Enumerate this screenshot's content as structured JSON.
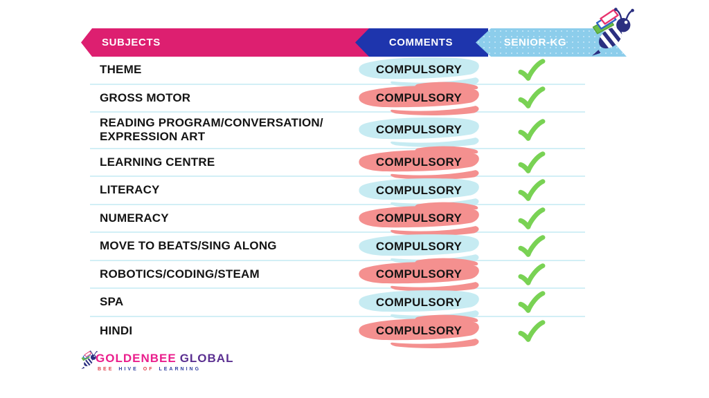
{
  "header": {
    "columns": [
      {
        "id": "subjects",
        "label": "SUBJECTS"
      },
      {
        "id": "comments",
        "label": "COMMENTS"
      },
      {
        "id": "senior_kg",
        "label": "SENIOR-KG"
      }
    ]
  },
  "table": {
    "rows": [
      {
        "subject": "THEME",
        "comment": "COMPULSORY",
        "highlight": "blue",
        "checked": true
      },
      {
        "subject": "GROSS MOTOR",
        "comment": "COMPULSORY",
        "highlight": "pink",
        "checked": true
      },
      {
        "subject": "READING PROGRAM/CONVERSATION/\nEXPRESSION ART",
        "comment": "COMPULSORY",
        "highlight": "blue",
        "checked": true
      },
      {
        "subject": "LEARNING CENTRE",
        "comment": "COMPULSORY",
        "highlight": "pink",
        "checked": true
      },
      {
        "subject": "LITERACY",
        "comment": "COMPULSORY",
        "highlight": "blue",
        "checked": true
      },
      {
        "subject": "NUMERACY",
        "comment": "COMPULSORY",
        "highlight": "pink",
        "checked": true
      },
      {
        "subject": "MOVE TO BEATS/SING ALONG",
        "comment": "COMPULSORY",
        "highlight": "blue",
        "checked": true
      },
      {
        "subject": "ROBOTICS/CODING/STEAM",
        "comment": "COMPULSORY",
        "highlight": "pink",
        "checked": true
      },
      {
        "subject": "SPA",
        "comment": "COMPULSORY",
        "highlight": "blue",
        "checked": true
      },
      {
        "subject": "HINDI",
        "comment": "COMPULSORY",
        "highlight": "pink",
        "checked": true
      }
    ]
  },
  "footer": {
    "brand_primary": "GOLDENBEE",
    "brand_secondary": "GLOBAL",
    "tagline_words": [
      "BEE",
      "HIVE",
      "OF",
      "LEARNING"
    ]
  },
  "icons": {
    "check": "checkmark-icon",
    "bee": "bee-logo-icon"
  },
  "colors": {
    "header_subjects": "#dd1f70",
    "header_comments": "#1e35ad",
    "header_senior_kg": "#8ccdeb",
    "highlight_blue": "#c6ebf2",
    "highlight_pink": "#f4908f",
    "check_green": "#79d254",
    "row_divider": "#d2eff6",
    "brand_pink": "#ea1e8c",
    "brand_purple": "#5b3091",
    "tagline_red": "#e0414b",
    "tagline_blue": "#3040a0"
  }
}
